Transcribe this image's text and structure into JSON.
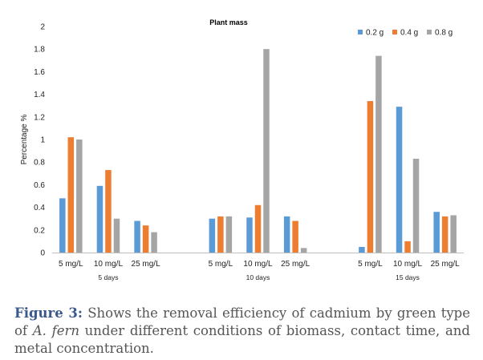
{
  "chart_data": {
    "type": "bar",
    "title": "Plant mass",
    "ylabel": "Percentage %",
    "xlabel": "",
    "ylim": [
      0,
      2
    ],
    "yticks": [
      "0",
      "0.2",
      "0.4",
      "0.6",
      "0.8",
      "1",
      "1.2",
      "1.4",
      "1.6",
      "1.8",
      "2"
    ],
    "grid": false,
    "legend_position": "top-right",
    "groups": [
      {
        "label": "5 days",
        "categories": [
          "5 mg/L",
          "10 mg/L",
          "25 mg/L"
        ]
      },
      {
        "label": "10 days",
        "categories": [
          "5 mg/L",
          "10 mg/L",
          "25 mg/L"
        ]
      },
      {
        "label": "15 days",
        "categories": [
          "5 mg/L",
          "10 mg/L",
          "25 mg/L"
        ]
      }
    ],
    "series": [
      {
        "name": "0.2 g",
        "color": "#5b9bd5",
        "values": [
          0.48,
          0.59,
          0.28,
          0.3,
          0.31,
          0.32,
          0.05,
          1.29,
          0.36
        ]
      },
      {
        "name": "0.4 g",
        "color": "#ed7d31",
        "values": [
          1.02,
          0.73,
          0.24,
          0.32,
          0.42,
          0.28,
          1.34,
          0.1,
          0.32
        ]
      },
      {
        "name": "0.8 g",
        "color": "#a5a5a5",
        "values": [
          1.0,
          0.3,
          0.18,
          0.32,
          1.8,
          0.04,
          1.74,
          0.83,
          0.33
        ]
      }
    ]
  },
  "caption": {
    "label": "Figure 3:",
    "text_before": " Shows the removal efficiency of cadmium by green type of ",
    "italic": "A. fern",
    "text_after": " under different conditions of biomass, contact time, and metal concentration."
  }
}
